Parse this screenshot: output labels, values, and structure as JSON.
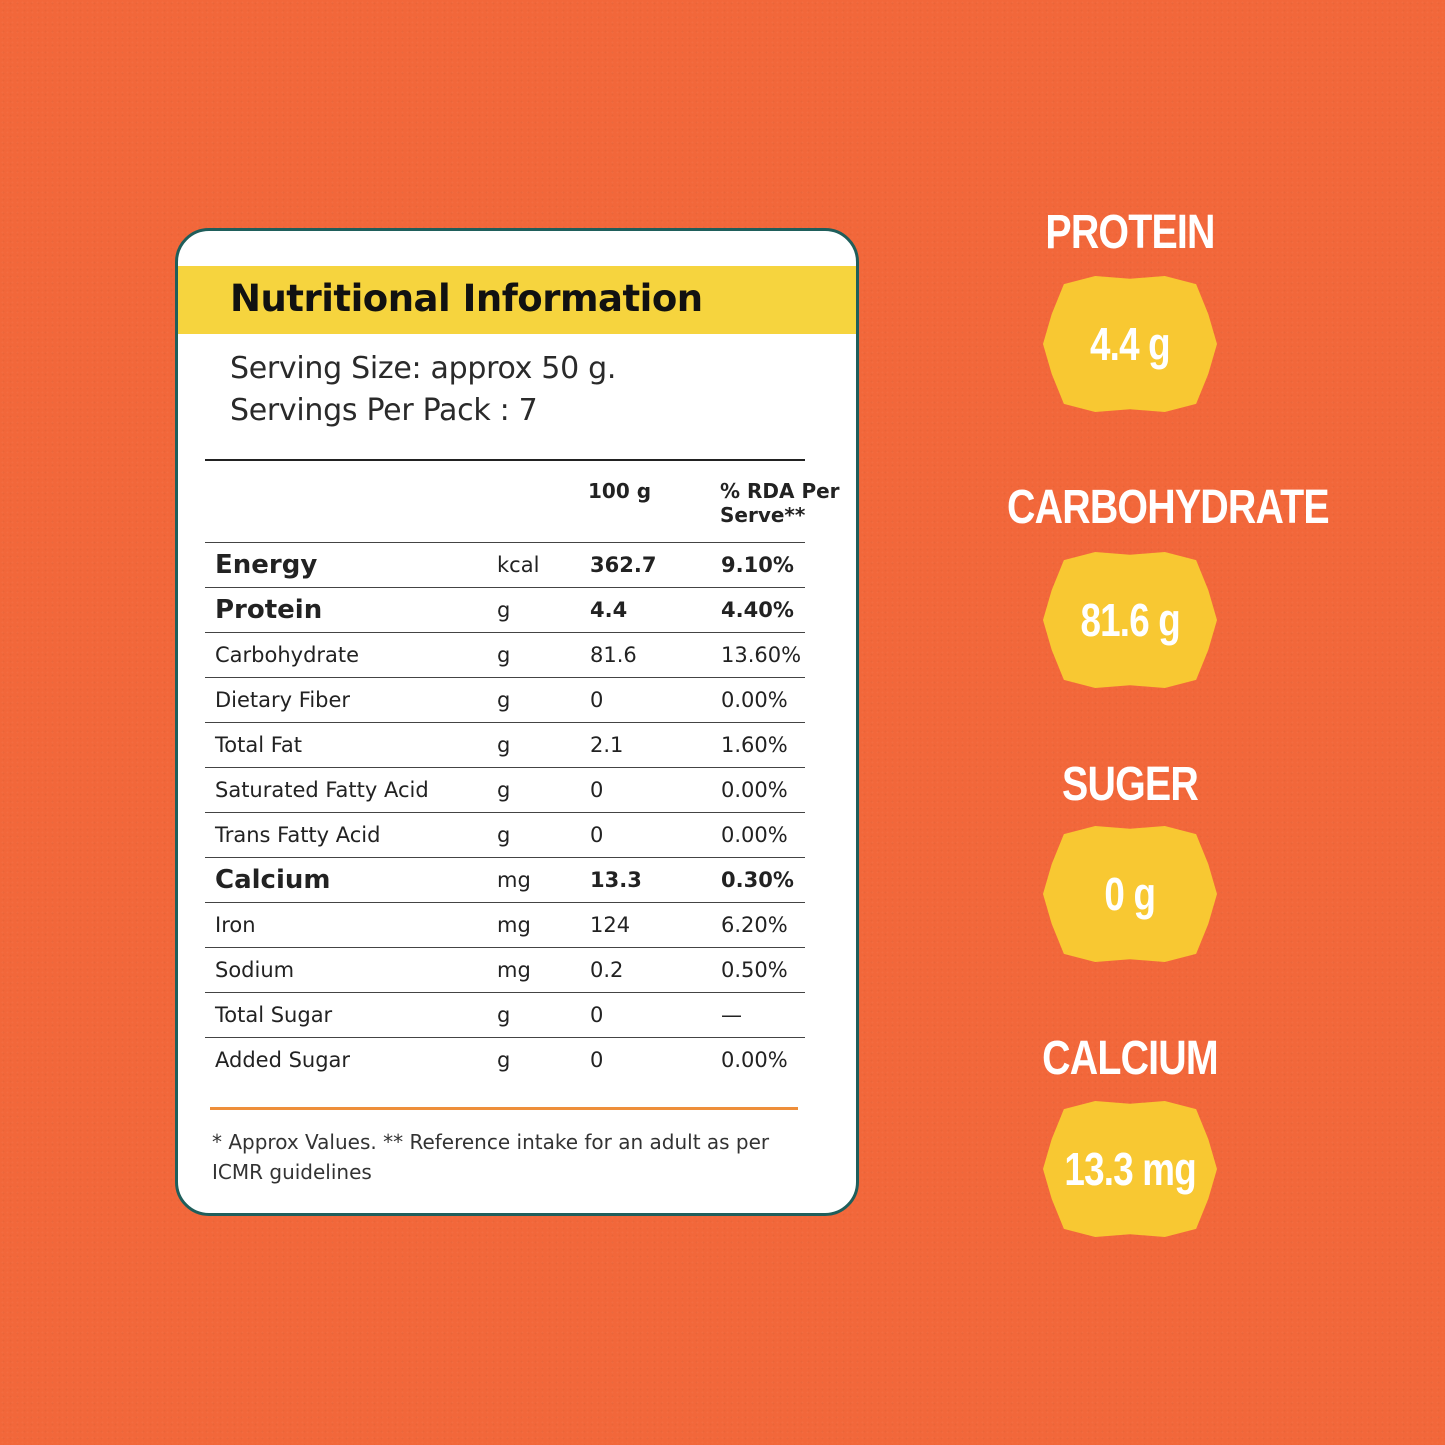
{
  "card": {
    "title": "Nutritional Information",
    "serving_size": "Serving Size: approx 50 g.",
    "servings_per_pack": "Servings Per Pack : 7",
    "col_100g": "100 g",
    "col_rda": "% RDA Per Serve**",
    "rows": [
      {
        "name": "Energy",
        "unit": "kcal",
        "v100": "362.7",
        "rda": "9.10%"
      },
      {
        "name": "Protein",
        "unit": "g",
        "v100": "4.4",
        "rda": "4.40%"
      },
      {
        "name": "Carbohydrate",
        "unit": "g",
        "v100": "81.6",
        "rda": "13.60%"
      },
      {
        "name": "Dietary Fiber",
        "unit": "g",
        "v100": "0",
        "rda": "0.00%"
      },
      {
        "name": "Total Fat",
        "unit": "g",
        "v100": "2.1",
        "rda": "1.60%"
      },
      {
        "name": "Saturated Fatty Acid",
        "unit": "g",
        "v100": "0",
        "rda": "0.00%"
      },
      {
        "name": "Trans Fatty Acid",
        "unit": "g",
        "v100": "0",
        "rda": "0.00%"
      },
      {
        "name": "Calcium",
        "unit": "mg",
        "v100": "13.3",
        "rda": "0.30%"
      },
      {
        "name": "Iron",
        "unit": "mg",
        "v100": "124",
        "rda": "6.20%"
      },
      {
        "name": "Sodium",
        "unit": "mg",
        "v100": "0.2",
        "rda": "0.50%"
      },
      {
        "name": "Total Sugar",
        "unit": "g",
        "v100": "0",
        "rda": "—"
      },
      {
        "name": "Added Sugar",
        "unit": "g",
        "v100": "0",
        "rda": "0.00%"
      }
    ],
    "footnote": "* Approx Values. ** Reference intake for an adult as per ICMR guidelines"
  },
  "highlights": [
    {
      "label": "PROTEIN",
      "value": "4.4 g"
    },
    {
      "label": "CARBOHYDRATE",
      "value": "81.6 g"
    },
    {
      "label": "SUGER",
      "value": "0 g"
    },
    {
      "label": "CALCIUM",
      "value": "13.3 mg"
    }
  ],
  "colors": {
    "background": "#F2673A",
    "header_band": "#F6D43E",
    "badge": "#F8C832",
    "card_border": "#1F5E5B",
    "footnote_rule": "#EE8E3A"
  }
}
